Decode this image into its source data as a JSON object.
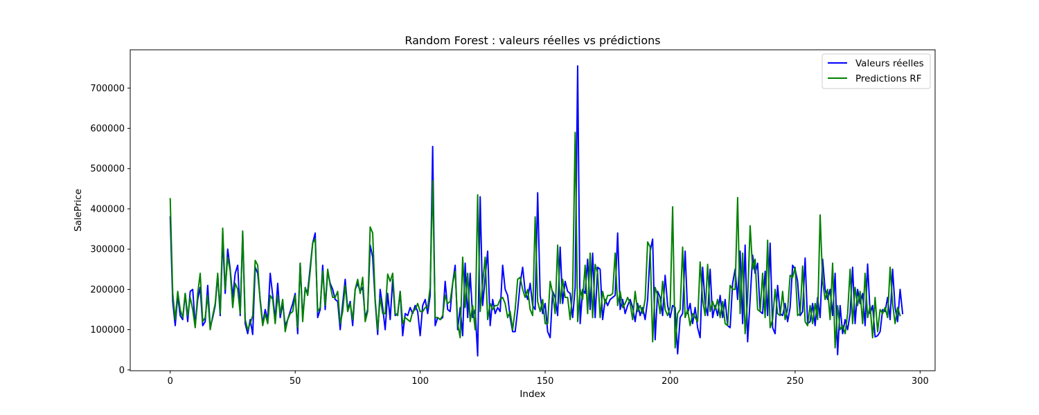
{
  "chart_data": {
    "type": "line",
    "title": "Random Forest : valeurs réelles vs prédictions",
    "xlabel": "Index",
    "ylabel": "SalePrice",
    "xlim": [
      -16,
      306
    ],
    "ylim": [
      -2000,
      795000
    ],
    "xticks": [
      0,
      50,
      100,
      150,
      200,
      250,
      300
    ],
    "yticks": [
      0,
      100000,
      200000,
      300000,
      400000,
      500000,
      600000,
      700000
    ],
    "grid": false,
    "legend_position": "top-right",
    "series": [
      {
        "name": "Valeurs réelles",
        "color": "#0000ff",
        "values": [
          380000,
          170000,
          110000,
          185000,
          135000,
          125000,
          190000,
          120000,
          195000,
          200000,
          110000,
          175000,
          205000,
          110000,
          120000,
          210000,
          105000,
          130000,
          160000,
          235000,
          135000,
          325000,
          190000,
          300000,
          250000,
          180000,
          240000,
          260000,
          135000,
          340000,
          115000,
          90000,
          125000,
          88000,
          255000,
          240000,
          175000,
          115000,
          150000,
          125000,
          240000,
          185000,
          125000,
          215000,
          130000,
          165000,
          110000,
          125000,
          145000,
          165000,
          190000,
          90000,
          265000,
          130000,
          200000,
          195000,
          255000,
          315000,
          340000,
          130000,
          150000,
          260000,
          150000,
          245000,
          215000,
          200000,
          175000,
          170000,
          100000,
          165000,
          225000,
          150000,
          170000,
          110000,
          200000,
          215000,
          195000,
          205000,
          130000,
          150000,
          310000,
          280000,
          170000,
          88000,
          200000,
          155000,
          100000,
          190000,
          125000,
          225000,
          135000,
          140000,
          195000,
          85000,
          140000,
          135000,
          155000,
          140000,
          160000,
          145000,
          85000,
          160000,
          175000,
          140000,
          185000,
          555000,
          110000,
          130000,
          125000,
          130000,
          220000,
          150000,
          145000,
          215000,
          260000,
          100000,
          155000,
          85000,
          265000,
          130000,
          240000,
          130000,
          150000,
          35000,
          430000,
          160000,
          230000,
          295000,
          110000,
          175000,
          140000,
          155000,
          145000,
          260000,
          200000,
          185000,
          130000,
          95000,
          95000,
          150000,
          215000,
          255000,
          195000,
          175000,
          215000,
          160000,
          150000,
          440000,
          185000,
          140000,
          165000,
          95000,
          80000,
          195000,
          180000,
          135000,
          305000,
          165000,
          220000,
          195000,
          190000,
          130000,
          205000,
          755000,
          115000,
          200000,
          190000,
          275000,
          150000,
          290000,
          130000,
          255000,
          250000,
          125000,
          175000,
          160000,
          175000,
          180000,
          185000,
          340000,
          150000,
          175000,
          140000,
          160000,
          175000,
          155000,
          120000,
          165000,
          135000,
          155000,
          125000,
          175000,
          295000,
          325000,
          75000,
          195000,
          180000,
          135000,
          235000,
          160000,
          130000,
          160000,
          155000,
          40000,
          130000,
          140000,
          295000,
          140000,
          165000,
          115000,
          155000,
          105000,
          80000,
          255000,
          165000,
          135000,
          250000,
          130000,
          160000,
          135000,
          185000,
          130000,
          175000,
          110000,
          105000,
          215000,
          250000,
          175000,
          295000,
          115000,
          310000,
          70000,
          175000,
          285000,
          240000,
          265000,
          145000,
          140000,
          245000,
          135000,
          315000,
          105000,
          90000,
          210000,
          140000,
          135000,
          165000,
          120000,
          155000,
          260000,
          250000,
          220000,
          135000,
          145000,
          278000,
          115000,
          120000,
          165000,
          110000,
          180000,
          130000,
          275000,
          200000,
          175000,
          200000,
          135000,
          240000,
          38000,
          160000,
          90000,
          125000,
          100000,
          140000,
          255000,
          115000,
          200000,
          165000,
          190000,
          110000,
          263000,
          140000,
          160000,
          82000,
          85000,
          95000,
          150000,
          145000,
          180000,
          125000,
          250000,
          155000,
          120000,
          200000,
          140000
        ],
        "x_start": 0,
        "x_step": 1
      },
      {
        "name": "Predictions RF",
        "color": "#008000",
        "values": [
          425000,
          190000,
          125000,
          195000,
          150000,
          130000,
          190000,
          135000,
          180000,
          150000,
          105000,
          190000,
          240000,
          120000,
          130000,
          185000,
          100000,
          135000,
          165000,
          240000,
          140000,
          352000,
          200000,
          280000,
          245000,
          155000,
          215000,
          200000,
          140000,
          345000,
          125000,
          100000,
          115000,
          135000,
          272000,
          260000,
          170000,
          110000,
          140000,
          115000,
          185000,
          175000,
          115000,
          185000,
          140000,
          175000,
          95000,
          125000,
          140000,
          145000,
          185000,
          105000,
          265000,
          120000,
          205000,
          185000,
          245000,
          315000,
          325000,
          145000,
          155000,
          245000,
          160000,
          250000,
          210000,
          180000,
          180000,
          195000,
          115000,
          145000,
          210000,
          145000,
          165000,
          125000,
          200000,
          225000,
          190000,
          230000,
          120000,
          145000,
          355000,
          340000,
          175000,
          100000,
          180000,
          140000,
          140000,
          238000,
          220000,
          240000,
          140000,
          135000,
          195000,
          115000,
          130000,
          125000,
          120000,
          145000,
          150000,
          165000,
          145000,
          145000,
          155000,
          155000,
          205000,
          470000,
          130000,
          130000,
          125000,
          135000,
          185000,
          165000,
          170000,
          215000,
          245000,
          115000,
          80000,
          280000,
          155000,
          240000,
          120000,
          160000,
          100000,
          435000,
          145000,
          215000,
          280000,
          125000,
          165000,
          150000,
          160000,
          160000,
          175000,
          180000,
          165000,
          130000,
          145000,
          100000,
          150000,
          225000,
          230000,
          200000,
          180000,
          200000,
          150000,
          135000,
          380000,
          170000,
          145000,
          175000,
          115000,
          115000,
          220000,
          190000,
          140000,
          310000,
          165000,
          225000,
          180000,
          180000,
          125000,
          195000,
          590000,
          120000,
          200000,
          175000,
          260000,
          140000,
          290000,
          130000,
          262000,
          240000,
          130000,
          195000,
          165000,
          185000,
          185000,
          190000,
          290000,
          160000,
          195000,
          155000,
          165000,
          180000,
          165000,
          125000,
          195000,
          145000,
          160000,
          140000,
          175000,
          318000,
          305000,
          70000,
          205000,
          185000,
          140000,
          220000,
          150000,
          135000,
          155000,
          405000,
          55000,
          140000,
          150000,
          305000,
          130000,
          150000,
          110000,
          140000,
          130000,
          120000,
          268000,
          175000,
          135000,
          262000,
          145000,
          170000,
          150000,
          175000,
          130000,
          170000,
          115000,
          110000,
          210000,
          200000,
          200000,
          428000,
          140000,
          290000,
          90000,
          175000,
          358000,
          250000,
          275000,
          150000,
          145000,
          240000,
          130000,
          322000,
          105000,
          125000,
          200000,
          140000,
          135000,
          195000,
          125000,
          150000,
          235000,
          230000,
          255000,
          135000,
          140000,
          258000,
          120000,
          110000,
          160000,
          115000,
          165000,
          125000,
          385000,
          220000,
          175000,
          200000,
          125000,
          265000,
          55000,
          160000,
          100000,
          110000,
          90000,
          140000,
          250000,
          115000,
          205000,
          160000,
          195000,
          115000,
          240000,
          130000,
          160000,
          80000,
          180000,
          95000,
          150000,
          140000,
          155000,
          130000,
          255000,
          165000,
          115000,
          155000,
          135000
        ],
        "x_start": 0,
        "x_step": 1
      }
    ]
  }
}
